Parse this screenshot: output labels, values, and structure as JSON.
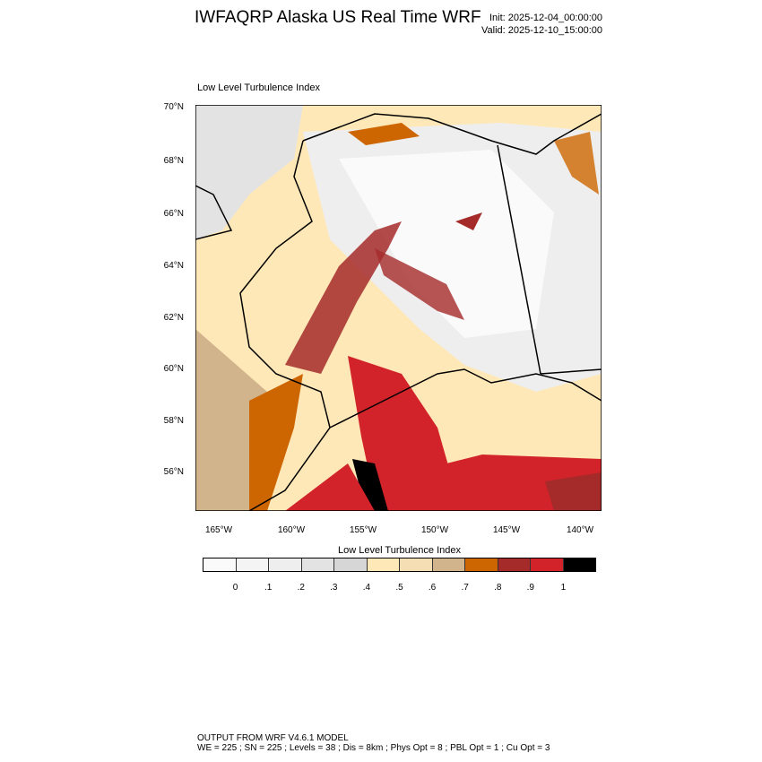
{
  "header": {
    "title": "IWFAQRP Alaska US Real Time WRF",
    "init": "Init: 2025-12-04_00:00:00",
    "valid": "Valid: 2025-12-10_15:00:00"
  },
  "map": {
    "subtitle": "Low Level Turbulence Index",
    "lat_labels": [
      "70°N",
      "68°N",
      "66°N",
      "64°N",
      "62°N",
      "60°N",
      "58°N",
      "56°N"
    ],
    "lon_labels": [
      "165°W",
      "160°W",
      "155°W",
      "150°W",
      "145°W",
      "140°W"
    ]
  },
  "colorbar": {
    "title": "Low Level Turbulence Index",
    "labels": [
      "0",
      ".1",
      ".2",
      ".3",
      ".4",
      ".5",
      ".6",
      ".7",
      ".8",
      ".9",
      "1"
    ],
    "colors": [
      "#fafafa",
      "#f4f4f4",
      "#eeeeee",
      "#e3e3e3",
      "#d6d6d6",
      "#ffe8b8",
      "#f5deb3",
      "#d2b48c",
      "#cd6600",
      "#a52a2a",
      "#d2232a",
      "#000000"
    ]
  },
  "footer": {
    "line1": "OUTPUT FROM WRF V4.6.1 MODEL",
    "line2": "WE = 225 ; SN = 225 ; Levels = 38 ; Dis = 8km ; Phys Opt = 8 ; PBL Opt = 1 ; Cu Opt = 3"
  }
}
